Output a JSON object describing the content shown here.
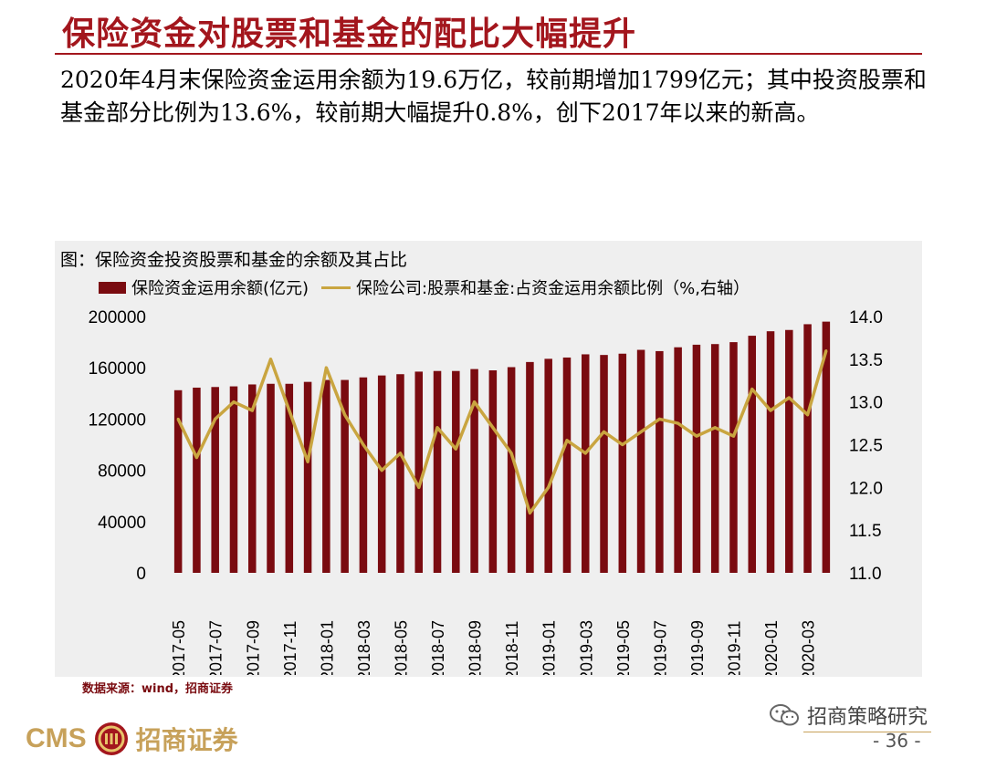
{
  "header": {
    "title": "保险资金对股票和基金的配比大幅提升",
    "summary": "2020年4月末保险资金运用余额为19.6万亿，较前期增加1799亿元；其中投资股票和基金部分比例为13.6%，较前期大幅提升0.8%，创下2017年以来的新高。"
  },
  "chart_data": {
    "type": "bar+line",
    "title": "图：保险资金投资股票和基金的余额及其占比",
    "legend": {
      "bar_label": "保险资金运用余额(亿元)",
      "line_label": "保险公司:股票和基金:占资金运用余额比例（%,右轴）",
      "placement": "top"
    },
    "categories": [
      "2017-05",
      "2017-06",
      "2017-07",
      "2017-08",
      "2017-09",
      "2017-10",
      "2017-11",
      "2017-12",
      "2018-01",
      "2018-02",
      "2018-03",
      "2018-04",
      "2018-05",
      "2018-06",
      "2018-07",
      "2018-08",
      "2018-09",
      "2018-10",
      "2018-11",
      "2018-12",
      "2019-01",
      "2019-02",
      "2019-03",
      "2019-04",
      "2019-05",
      "2019-06",
      "2019-07",
      "2019-08",
      "2019-09",
      "2019-10",
      "2019-11",
      "2019-12",
      "2020-01",
      "2020-02",
      "2020-03",
      "2020-04"
    ],
    "tick_labels": [
      "2017-05",
      "2017-07",
      "2017-09",
      "2017-11",
      "2018-01",
      "2018-03",
      "2018-05",
      "2018-07",
      "2018-09",
      "2018-11",
      "2019-01",
      "2019-03",
      "2019-05",
      "2019-07",
      "2019-09",
      "2019-11",
      "2020-01",
      "2020-03"
    ],
    "series": [
      {
        "name": "保险资金运用余额(亿元)",
        "kind": "bar",
        "axis": "left",
        "color": "#7a0b10",
        "values": [
          142500,
          144500,
          145000,
          145500,
          147000,
          147500,
          147500,
          149000,
          150500,
          150500,
          152500,
          154000,
          155000,
          157000,
          157500,
          157500,
          159000,
          158000,
          160500,
          164500,
          167000,
          168000,
          170500,
          170000,
          171000,
          174000,
          173000,
          176000,
          178000,
          178500,
          180000,
          185000,
          188500,
          189500,
          194000,
          196000
        ]
      },
      {
        "name": "保险公司:股票和基金:占资金运用余额比例（%,右轴）",
        "kind": "line",
        "axis": "right",
        "color": "#c9a540",
        "values": [
          12.8,
          12.35,
          12.8,
          13.0,
          12.9,
          13.5,
          12.9,
          12.3,
          13.4,
          12.85,
          12.5,
          12.2,
          12.4,
          12.0,
          12.7,
          12.45,
          13.0,
          12.7,
          12.4,
          11.7,
          12.0,
          12.55,
          12.4,
          12.65,
          12.5,
          12.65,
          12.8,
          12.75,
          12.6,
          12.7,
          12.6,
          13.15,
          12.9,
          13.05,
          12.85,
          13.6
        ]
      }
    ],
    "y_left": {
      "min": 0,
      "max": 200000,
      "ticks": [
        0,
        40000,
        80000,
        120000,
        160000,
        200000
      ]
    },
    "y_right": {
      "min": 11.0,
      "max": 14.0,
      "ticks": [
        "11.0",
        "11.5",
        "12.0",
        "12.5",
        "13.0",
        "13.5",
        "14.0"
      ]
    },
    "grid": false
  },
  "footer": {
    "source": "数据来源：wind，招商证券",
    "wechat": "招商策略研究",
    "logo_latin": "CMS",
    "logo_cn": "招商证券",
    "page": "- 36 -"
  },
  "colors": {
    "accent": "#a3161d",
    "bar": "#7a0b10",
    "line": "#c9a540",
    "chart_bg": "#efefef",
    "logo": "#c7a15a"
  }
}
